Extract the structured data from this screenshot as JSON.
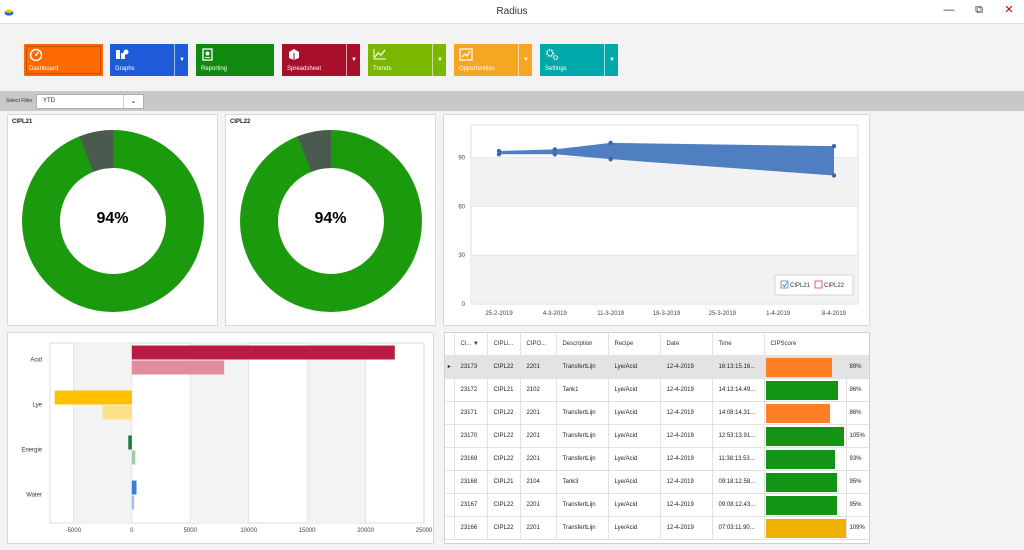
{
  "window": {
    "title": "Radius",
    "minimize": "—",
    "restore": "⧉",
    "close": "✕"
  },
  "ribbon": {
    "tiles": [
      {
        "key": "dashboard",
        "label": "Dashboard",
        "color": "#ff6a00",
        "dropdown": false
      },
      {
        "key": "graphs",
        "label": "Graphs",
        "color": "#1e5bd8",
        "dropdown": true
      },
      {
        "key": "reporting",
        "label": "Reporting",
        "color": "#0f8a0f",
        "dropdown": false
      },
      {
        "key": "spreadsheet",
        "label": "Spreadsheet",
        "color": "#a80f2a",
        "dropdown": true
      },
      {
        "key": "trends",
        "label": "Trends",
        "color": "#7ab800",
        "dropdown": true
      },
      {
        "key": "opportunities",
        "label": "Opportunities",
        "color": "#f5a623",
        "dropdown": true
      },
      {
        "key": "settings",
        "label": "Settings",
        "color": "#00a9a9",
        "dropdown": true
      }
    ]
  },
  "filter": {
    "label": "Select Filter",
    "value": "YTD"
  },
  "donuts": [
    {
      "title": "CIPL21",
      "percent_label": "94%",
      "value": 94
    },
    {
      "title": "CIPL22",
      "percent_label": "94%",
      "value": 94
    }
  ],
  "chart_data": [
    {
      "type": "area",
      "title": "",
      "x": [
        "25-2-2019",
        "4-3-2019",
        "11-3-2019",
        "18-3-2019",
        "25-3-2019",
        "1-4-2019",
        "8-4-2019"
      ],
      "y_ticks": [
        "0",
        "30",
        "60",
        "90"
      ],
      "ylim": [
        0,
        110
      ],
      "series": [
        {
          "name": "CIPL21",
          "points": [
            [
              0,
              94
            ],
            [
              1,
              95
            ],
            [
              2,
              99
            ],
            [
              6,
              97
            ]
          ]
        },
        {
          "name": "CIPL22",
          "points": [
            [
              0,
              92
            ],
            [
              1,
              92
            ],
            [
              2,
              89
            ],
            [
              6,
              79
            ]
          ]
        }
      ],
      "legend": [
        "CIPL21",
        "CIPL22"
      ],
      "legend_position": "bottom-right",
      "colors": {
        "area": "#4f7fc0",
        "point": "#3c68a8"
      }
    },
    {
      "type": "bar",
      "orientation": "horizontal",
      "categories": [
        "Acid",
        "Lye",
        "Energie",
        "Water"
      ],
      "series": [
        {
          "name": "primary",
          "values": [
            22500,
            -6600,
            -300,
            400
          ],
          "colors": [
            "#b81c44",
            "#ffc000",
            "#1a7a3a",
            "#3a7fd0"
          ]
        },
        {
          "name": "secondary",
          "values": [
            7900,
            -2500,
            300,
            200
          ],
          "colors": [
            "#e28ca0",
            "#ffe08a",
            "#9fcea8",
            "#9cc3ea"
          ]
        }
      ],
      "x_ticks": [
        "-5000",
        "0",
        "5000",
        "10000",
        "15000",
        "20000",
        "25000"
      ],
      "xlim": [
        -7000,
        25000
      ]
    }
  ],
  "table": {
    "columns": [
      "Cl...",
      "CIPLi...",
      "CIPO...",
      "Description",
      "Recipe",
      "Date",
      "Time",
      "CIPScore"
    ],
    "rows": [
      {
        "cl": "23173",
        "line": "CIPL22",
        "obj": "2201",
        "desc": "TransfertLijn",
        "recipe": "Lye/Acid",
        "date": "12-4-2019",
        "time": "16:13:15.16...",
        "score": 89,
        "score_label": "89%",
        "color": "#ff7f27"
      },
      {
        "cl": "23172",
        "line": "CIPL21",
        "obj": "2102",
        "desc": "Tank1",
        "recipe": "Lye/Acid",
        "date": "12-4-2019",
        "time": "14:13:14.49...",
        "score": 96,
        "score_label": "96%",
        "color": "#149414"
      },
      {
        "cl": "23171",
        "line": "CIPL22",
        "obj": "2201",
        "desc": "TransfertLijn",
        "recipe": "Lye/Acid",
        "date": "12-4-2019",
        "time": "14:08:14.31...",
        "score": 86,
        "score_label": "86%",
        "color": "#ff7f27"
      },
      {
        "cl": "23170",
        "line": "CIPL22",
        "obj": "2201",
        "desc": "TransfertLijn",
        "recipe": "Lye/Acid",
        "date": "12-4-2019",
        "time": "12:53:13.91...",
        "score": 105,
        "score_label": "105%",
        "color": "#149414"
      },
      {
        "cl": "23169",
        "line": "CIPL22",
        "obj": "2201",
        "desc": "TransfertLijn",
        "recipe": "Lye/Acid",
        "date": "12-4-2019",
        "time": "11:38:13.53...",
        "score": 93,
        "score_label": "93%",
        "color": "#149414"
      },
      {
        "cl": "23168",
        "line": "CIPL21",
        "obj": "2104",
        "desc": "Tank3",
        "recipe": "Lye/Acid",
        "date": "12-4-2019",
        "time": "09:18:12.58...",
        "score": 95,
        "score_label": "95%",
        "color": "#149414"
      },
      {
        "cl": "23167",
        "line": "CIPL22",
        "obj": "2201",
        "desc": "TransfertLijn",
        "recipe": "Lye/Acid",
        "date": "12-4-2019",
        "time": "09:08:12.43...",
        "score": 95,
        "score_label": "95%",
        "color": "#149414"
      },
      {
        "cl": "23166",
        "line": "CIPL22",
        "obj": "2201",
        "desc": "TransfertLijn",
        "recipe": "Lye/Acid",
        "date": "12-4-2019",
        "time": "07:03:11.90...",
        "score": 109,
        "score_label": "109%",
        "color": "#f0b000"
      }
    ]
  }
}
